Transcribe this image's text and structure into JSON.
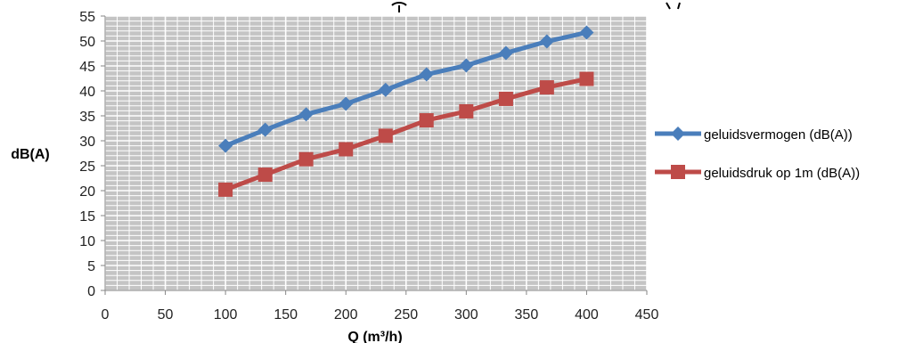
{
  "chart_data": {
    "type": "line",
    "title": "",
    "xlabel": "Q (m³/h)",
    "ylabel": "dB(A)",
    "xlim": [
      0,
      450
    ],
    "ylim": [
      0,
      55
    ],
    "x_ticks": [
      0,
      50,
      100,
      150,
      200,
      250,
      300,
      350,
      400,
      450
    ],
    "y_ticks": [
      0,
      5,
      10,
      15,
      20,
      25,
      30,
      35,
      40,
      45,
      50,
      55
    ],
    "grid": true,
    "legend_position": "right",
    "series": [
      {
        "name": "geluidsvermogen (dB(A))",
        "color": "#4A7EBB",
        "marker": "diamond",
        "x": [
          100,
          133,
          167,
          200,
          233,
          267,
          300,
          333,
          367,
          400
        ],
        "y": [
          29,
          32.2,
          35.3,
          37.4,
          40.2,
          43.3,
          45.1,
          47.6,
          49.9,
          51.7
        ]
      },
      {
        "name": "geluidsdruk op 1m (dB(A))",
        "color": "#BE4B48",
        "marker": "square",
        "x": [
          100,
          133,
          167,
          200,
          233,
          267,
          300,
          333,
          367,
          400
        ],
        "y": [
          20.2,
          23.2,
          26.3,
          28.3,
          31,
          34.1,
          35.9,
          38.4,
          40.7,
          42.4
        ]
      }
    ]
  }
}
